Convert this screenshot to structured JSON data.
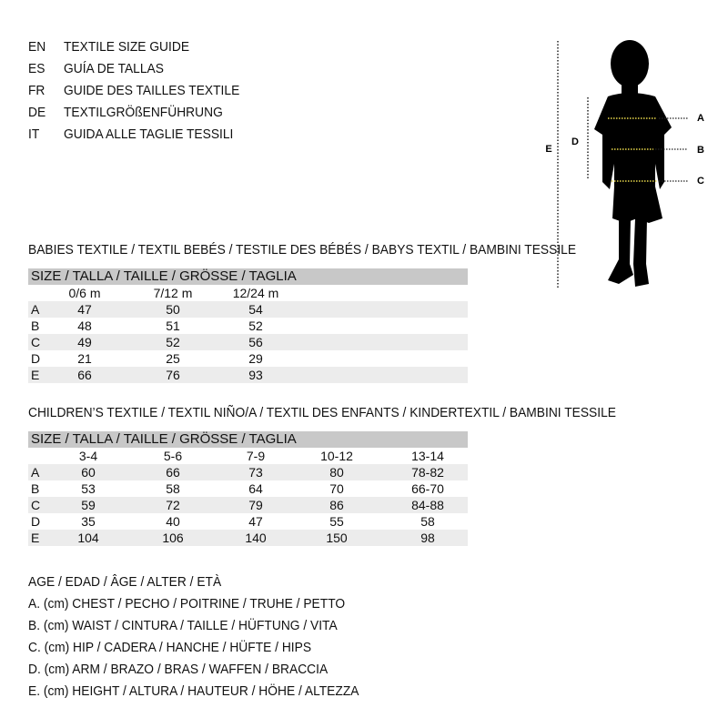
{
  "languages": [
    {
      "code": "EN",
      "title": "TEXTILE SIZE GUIDE"
    },
    {
      "code": "ES",
      "title": "GUÍA DE TALLAS"
    },
    {
      "code": "FR",
      "title": "GUIDE DES TAILLES TEXTILE"
    },
    {
      "code": "DE",
      "title": "TEXTILGRÖßENFÜHRUNG"
    },
    {
      "code": "IT",
      "title": "GUIDA ALLE TAGLIE TESSILI"
    }
  ],
  "babies": {
    "heading": "BABIES TEXTILE / TEXTIL BEBÉS / TESTILE DES BÉBÉS / BABYS TEXTIL / BAMBINI TESSILE",
    "size_header": "SIZE / TALLA / TAILLE / GRÖSSE / TAGLIA",
    "columns": [
      "0/6 m",
      "7/12 m",
      "12/24 m"
    ],
    "rows": [
      {
        "label": "A",
        "values": [
          "47",
          "50",
          "54"
        ]
      },
      {
        "label": "B",
        "values": [
          "48",
          "51",
          "52"
        ]
      },
      {
        "label": "C",
        "values": [
          "49",
          "52",
          "56"
        ]
      },
      {
        "label": "D",
        "values": [
          "21",
          "25",
          "29"
        ]
      },
      {
        "label": "E",
        "values": [
          "66",
          "76",
          "93"
        ]
      }
    ]
  },
  "children": {
    "heading": "CHILDREN’S TEXTILE / TEXTIL NIÑO/A / TEXTIL DES ENFANTS / KINDERTEXTIL / BAMBINI TESSILE",
    "size_header": "SIZE / TALLA / TAILLE / GRÖSSE / TAGLIA",
    "columns": [
      "3-4",
      "5-6",
      "7-9",
      "10-12",
      "13-14"
    ],
    "rows": [
      {
        "label": "A",
        "values": [
          "60",
          "66",
          "73",
          "80",
          "78-82"
        ]
      },
      {
        "label": "B",
        "values": [
          "53",
          "58",
          "64",
          "70",
          "66-70"
        ]
      },
      {
        "label": "C",
        "values": [
          "59",
          "72",
          "79",
          "86",
          "84-88"
        ]
      },
      {
        "label": "D",
        "values": [
          "35",
          "40",
          "47",
          "55",
          "58"
        ]
      },
      {
        "label": "E",
        "values": [
          "104",
          "106",
          "140",
          "150",
          "98"
        ]
      }
    ]
  },
  "legend": [
    "AGE / EDAD / ÂGE / ALTER / ETÀ",
    "A. (cm) CHEST / PECHO / POITRINE / TRUHE / PETTO",
    "B. (cm) WAIST / CINTURA / TAILLE / HÜFTUNG / VITA",
    "C. (cm) HIP / CADERA / HANCHE / HÜFTE / HIPS",
    "D. (cm) ARM / BRAZO / BRAS / WAFFEN / BRACCIA",
    "E. (cm) HEIGHT / ALTURA / HAUTEUR / HÖHE / ALTEZZA"
  ],
  "figure": {
    "labels": {
      "a": "A",
      "b": "B",
      "c": "C",
      "d": "D",
      "e": "E"
    },
    "marker_color": "#e8d84a"
  }
}
